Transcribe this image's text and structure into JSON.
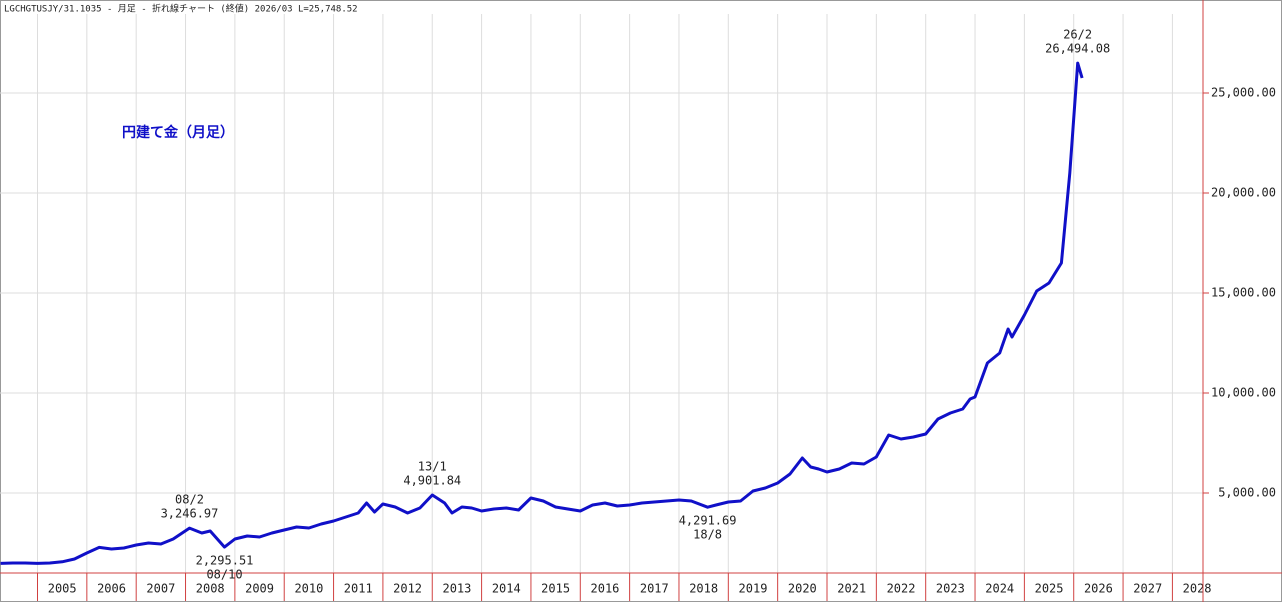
{
  "chart_data": {
    "type": "line",
    "header": "LGCHGTUSJY/31.1035 - 月足 - 折れ線チャート (終値) 2026/03 L=25,748.52",
    "title": "円建て金（月足）",
    "series": [
      {
        "name": "円建て金",
        "color": "#1010c8",
        "x": [
          2004.25,
          2004.5,
          2004.75,
          2005.0,
          2005.25,
          2005.5,
          2005.75,
          2006.0,
          2006.25,
          2006.5,
          2006.75,
          2007.0,
          2007.25,
          2007.5,
          2007.75,
          2008.08,
          2008.33,
          2008.5,
          2008.79,
          2009.0,
          2009.25,
          2009.5,
          2009.75,
          2010.0,
          2010.25,
          2010.5,
          2010.75,
          2011.0,
          2011.25,
          2011.5,
          2011.67,
          2011.83,
          2012.0,
          2012.25,
          2012.5,
          2012.75,
          2013.0,
          2013.25,
          2013.4,
          2013.6,
          2013.8,
          2014.0,
          2014.25,
          2014.5,
          2014.75,
          2015.0,
          2015.25,
          2015.5,
          2015.75,
          2016.0,
          2016.25,
          2016.5,
          2016.75,
          2017.0,
          2017.25,
          2017.5,
          2017.75,
          2018.0,
          2018.25,
          2018.58,
          2018.75,
          2019.0,
          2019.25,
          2019.5,
          2019.75,
          2020.0,
          2020.25,
          2020.5,
          2020.67,
          2020.83,
          2021.0,
          2021.25,
          2021.5,
          2021.75,
          2022.0,
          2022.25,
          2022.5,
          2022.75,
          2023.0,
          2023.25,
          2023.5,
          2023.75,
          2023.9,
          2024.0,
          2024.25,
          2024.5,
          2024.67,
          2024.75,
          2025.0,
          2025.25,
          2025.5,
          2025.75,
          2025.92,
          2026.08,
          2026.17
        ],
        "values": [
          1480,
          1500,
          1500,
          1480,
          1500,
          1560,
          1700,
          2000,
          2280,
          2200,
          2250,
          2400,
          2500,
          2450,
          2700,
          3246.97,
          3000,
          3100,
          2295.51,
          2700,
          2850,
          2800,
          3000,
          3150,
          3300,
          3250,
          3450,
          3600,
          3800,
          4000,
          4500,
          4050,
          4450,
          4300,
          4000,
          4250,
          4901.84,
          4500,
          4000,
          4300,
          4250,
          4100,
          4200,
          4250,
          4150,
          4750,
          4600,
          4300,
          4200,
          4100,
          4400,
          4500,
          4350,
          4400,
          4500,
          4550,
          4600,
          4650,
          4600,
          4291.69,
          4400,
          4550,
          4600,
          5100,
          5250,
          5500,
          5950,
          6750,
          6300,
          6200,
          6050,
          6200,
          6500,
          6450,
          6800,
          7900,
          7700,
          7800,
          7950,
          8700,
          9000,
          9200,
          9700,
          9800,
          11500,
          12000,
          13200,
          12800,
          13900,
          15100,
          15500,
          16500,
          21000,
          26494.08,
          25748.52
        ]
      }
    ],
    "annotations": [
      {
        "date": "08/2",
        "label": "3,246.97",
        "x": 2008.08,
        "y": 3246.97,
        "position": "above"
      },
      {
        "date": "08/10",
        "label": "2,295.51",
        "x": 2008.79,
        "y": 2295.51,
        "position": "below"
      },
      {
        "date": "13/1",
        "label": "4,901.84",
        "x": 2013.0,
        "y": 4901.84,
        "position": "above"
      },
      {
        "date": "18/8",
        "label": "4,291.69",
        "x": 2018.58,
        "y": 4291.69,
        "position": "below"
      },
      {
        "date": "26/2",
        "label": "26,494.08",
        "x": 2026.08,
        "y": 26494.08,
        "position": "above"
      }
    ],
    "xlim": [
      2004.24,
      2028.62
    ],
    "xticks": [
      2005,
      2006,
      2007,
      2008,
      2009,
      2010,
      2011,
      2012,
      2013,
      2014,
      2015,
      2016,
      2017,
      2018,
      2019,
      2020,
      2021,
      2022,
      2023,
      2024,
      2025,
      2026,
      2027,
      2028
    ],
    "ylim": [
      1000,
      29650
    ],
    "yticks": [
      {
        "value": 5000,
        "label": "5,000.00"
      },
      {
        "value": 10000,
        "label": "10,000.00"
      },
      {
        "value": 15000,
        "label": "15,000.00"
      },
      {
        "value": 20000,
        "label": "20,000.00"
      },
      {
        "value": 25000,
        "label": "25,000.00"
      }
    ],
    "grid": true
  }
}
